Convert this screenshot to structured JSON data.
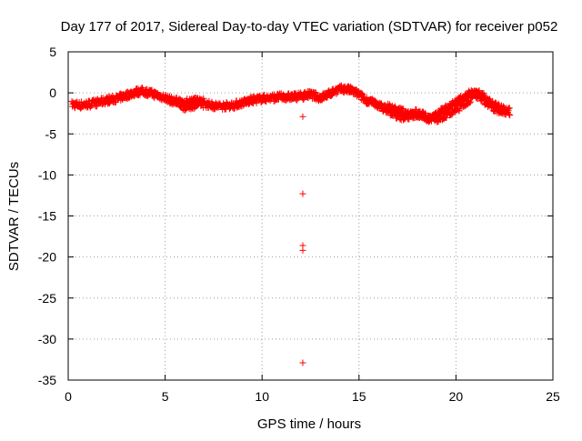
{
  "chart_data": {
    "type": "scatter",
    "title": "Day 177 of 2017, Sidereal Day-to-day VTEC variation (SDTVAR) for receiver p052",
    "xlabel": "GPS time / hours",
    "ylabel": "SDTVAR / TECUs",
    "xlim": [
      0,
      25
    ],
    "ylim": [
      -35,
      5
    ],
    "xticks": [
      0,
      5,
      10,
      15,
      20,
      25
    ],
    "yticks": [
      5,
      0,
      -5,
      -10,
      -15,
      -20,
      -25,
      -30,
      -35
    ],
    "grid": true,
    "marker": "+",
    "series_color": "#ff0000",
    "trace": [
      [
        0.2,
        -1.4
      ],
      [
        0.6,
        -1.5
      ],
      [
        1.0,
        -1.4
      ],
      [
        1.5,
        -1.2
      ],
      [
        2.0,
        -0.9
      ],
      [
        2.5,
        -0.7
      ],
      [
        3.0,
        -0.3
      ],
      [
        3.5,
        0.1
      ],
      [
        3.8,
        0.2
      ],
      [
        4.2,
        0.0
      ],
      [
        4.6,
        -0.3
      ],
      [
        5.0,
        -0.6
      ],
      [
        5.3,
        -0.9
      ],
      [
        5.7,
        -1.3
      ],
      [
        6.0,
        -1.7
      ],
      [
        6.4,
        -1.5
      ],
      [
        6.8,
        -1.3
      ],
      [
        7.2,
        -1.4
      ],
      [
        7.6,
        -1.6
      ],
      [
        8.0,
        -1.6
      ],
      [
        8.5,
        -1.5
      ],
      [
        9.0,
        -1.2
      ],
      [
        9.5,
        -0.9
      ],
      [
        10.0,
        -0.7
      ],
      [
        10.5,
        -0.6
      ],
      [
        11.0,
        -0.5
      ],
      [
        11.5,
        -0.5
      ],
      [
        12.0,
        -0.4
      ],
      [
        12.5,
        -0.2
      ],
      [
        13.0,
        -0.6
      ],
      [
        13.4,
        -0.2
      ],
      [
        13.8,
        0.3
      ],
      [
        14.2,
        0.5
      ],
      [
        14.6,
        0.3
      ],
      [
        15.0,
        -0.2
      ],
      [
        15.3,
        -0.8
      ],
      [
        15.7,
        -1.2
      ],
      [
        16.0,
        -1.5
      ],
      [
        16.4,
        -2.0
      ],
      [
        16.8,
        -2.6
      ],
      [
        17.2,
        -2.9
      ],
      [
        17.6,
        -2.8
      ],
      [
        18.0,
        -2.6
      ],
      [
        18.3,
        -2.7
      ],
      [
        18.6,
        -3.2
      ],
      [
        19.0,
        -2.8
      ],
      [
        19.4,
        -2.0
      ],
      [
        19.8,
        -1.4
      ],
      [
        20.2,
        -0.9
      ],
      [
        20.6,
        -0.3
      ],
      [
        20.9,
        0.1
      ],
      [
        21.2,
        -0.5
      ],
      [
        21.6,
        -1.3
      ],
      [
        22.0,
        -1.9
      ],
      [
        22.4,
        -2.2
      ],
      [
        22.8,
        -2.3
      ]
    ],
    "second_trace": [
      [
        5.5,
        -0.8
      ],
      [
        5.9,
        -1.1
      ],
      [
        6.3,
        -0.9
      ],
      [
        6.6,
        -0.7
      ],
      [
        7.0,
        -0.9
      ],
      [
        16.5,
        -1.6
      ],
      [
        17.0,
        -2.0
      ],
      [
        17.5,
        -2.4
      ],
      [
        18.0,
        -2.3
      ],
      [
        19.0,
        -3.3
      ],
      [
        19.5,
        -2.8
      ],
      [
        20.0,
        -2.2
      ],
      [
        20.4,
        -1.5
      ],
      [
        20.8,
        -0.8
      ],
      [
        21.2,
        0.0
      ],
      [
        21.6,
        -0.6
      ],
      [
        22.0,
        -1.4
      ],
      [
        22.5,
        -1.9
      ]
    ],
    "outliers": [
      [
        12.1,
        -2.9
      ],
      [
        12.1,
        -12.3
      ],
      [
        12.1,
        -18.6
      ],
      [
        12.1,
        -19.2
      ],
      [
        12.1,
        -32.9
      ]
    ]
  }
}
